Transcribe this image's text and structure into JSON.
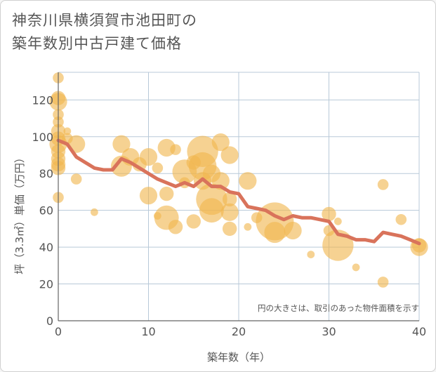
{
  "title_lines": [
    "神奈川県横須賀市池田町の",
    "築年数別中古戸建て価格"
  ],
  "chart_data": {
    "type": "scatter",
    "title": "神奈川県横須賀市池田町の築年数別中古戸建て価格",
    "xlabel": "築年数（年）",
    "ylabel": "坪（3.3㎡）単価（万円）",
    "xlim": [
      0,
      40
    ],
    "ylim": [
      0,
      135
    ],
    "xticks": [
      0,
      10,
      20,
      30,
      40
    ],
    "yticks": [
      0,
      20,
      40,
      60,
      80,
      100,
      120
    ],
    "grid": true,
    "annotation": "円の大きさは、取引のあった物件面積を示す",
    "colors": {
      "bubble": "#f0b64f",
      "line": "#d9735b",
      "grid": "#b8c9d8",
      "axis": "#666666"
    },
    "bubbles": [
      {
        "x": 0,
        "y": 132,
        "size": 2
      },
      {
        "x": 0,
        "y": 121,
        "size": 3
      },
      {
        "x": 0,
        "y": 119,
        "size": 4
      },
      {
        "x": 0,
        "y": 112,
        "size": 2
      },
      {
        "x": 0,
        "y": 108,
        "size": 2
      },
      {
        "x": 0,
        "y": 103,
        "size": 3
      },
      {
        "x": 0,
        "y": 99,
        "size": 3
      },
      {
        "x": 0,
        "y": 96,
        "size": 4
      },
      {
        "x": 0,
        "y": 92,
        "size": 3
      },
      {
        "x": 0,
        "y": 88,
        "size": 3
      },
      {
        "x": 0,
        "y": 85,
        "size": 3
      },
      {
        "x": 0,
        "y": 83,
        "size": 3
      },
      {
        "x": 0,
        "y": 67,
        "size": 2
      },
      {
        "x": 1,
        "y": 103,
        "size": 1
      },
      {
        "x": 1,
        "y": 99,
        "size": 2
      },
      {
        "x": 2,
        "y": 96,
        "size": 4
      },
      {
        "x": 2,
        "y": 77,
        "size": 2
      },
      {
        "x": 4,
        "y": 59,
        "size": 1
      },
      {
        "x": 7,
        "y": 96,
        "size": 4
      },
      {
        "x": 7,
        "y": 84,
        "size": 5
      },
      {
        "x": 8,
        "y": 89,
        "size": 4
      },
      {
        "x": 9,
        "y": 85,
        "size": 3
      },
      {
        "x": 10,
        "y": 89,
        "size": 4
      },
      {
        "x": 10,
        "y": 68,
        "size": 4
      },
      {
        "x": 11,
        "y": 83,
        "size": 2
      },
      {
        "x": 11,
        "y": 57,
        "size": 1
      },
      {
        "x": 12,
        "y": 94,
        "size": 4
      },
      {
        "x": 12,
        "y": 69,
        "size": 3
      },
      {
        "x": 12,
        "y": 56,
        "size": 6
      },
      {
        "x": 13,
        "y": 93,
        "size": 2
      },
      {
        "x": 13,
        "y": 51,
        "size": 3
      },
      {
        "x": 14,
        "y": 81,
        "size": 6
      },
      {
        "x": 14,
        "y": 75,
        "size": 2
      },
      {
        "x": 15,
        "y": 86,
        "size": 3
      },
      {
        "x": 15,
        "y": 54,
        "size": 3
      },
      {
        "x": 16,
        "y": 92,
        "size": 8
      },
      {
        "x": 16,
        "y": 84,
        "size": 7
      },
      {
        "x": 16,
        "y": 76,
        "size": 4
      },
      {
        "x": 17,
        "y": 80,
        "size": 4
      },
      {
        "x": 17,
        "y": 66,
        "size": 8
      },
      {
        "x": 17,
        "y": 60,
        "size": 6
      },
      {
        "x": 18,
        "y": 97,
        "size": 4
      },
      {
        "x": 18,
        "y": 76,
        "size": 4
      },
      {
        "x": 19,
        "y": 90,
        "size": 4
      },
      {
        "x": 19,
        "y": 66,
        "size": 3
      },
      {
        "x": 19,
        "y": 59,
        "size": 4
      },
      {
        "x": 19,
        "y": 50,
        "size": 3
      },
      {
        "x": 21,
        "y": 76,
        "size": 4
      },
      {
        "x": 21,
        "y": 51,
        "size": 1
      },
      {
        "x": 22,
        "y": 56,
        "size": 2
      },
      {
        "x": 24,
        "y": 54,
        "size": 10
      },
      {
        "x": 24,
        "y": 48,
        "size": 5
      },
      {
        "x": 26,
        "y": 49,
        "size": 4
      },
      {
        "x": 28,
        "y": 36,
        "size": 1
      },
      {
        "x": 30,
        "y": 58,
        "size": 3
      },
      {
        "x": 30,
        "y": 49,
        "size": 2
      },
      {
        "x": 31,
        "y": 41,
        "size": 8
      },
      {
        "x": 31,
        "y": 54,
        "size": 1
      },
      {
        "x": 33,
        "y": 29,
        "size": 1
      },
      {
        "x": 36,
        "y": 74,
        "size": 2
      },
      {
        "x": 36,
        "y": 21,
        "size": 2
      },
      {
        "x": 38,
        "y": 55,
        "size": 2
      },
      {
        "x": 40,
        "y": 41,
        "size": 3
      },
      {
        "x": 40,
        "y": 40,
        "size": 4
      }
    ],
    "trend_line": {
      "x": [
        0,
        1,
        2,
        3,
        4,
        5,
        6,
        7,
        8,
        9,
        10,
        11,
        12,
        13,
        14,
        15,
        16,
        17,
        18,
        19,
        20,
        21,
        22,
        23,
        24,
        25,
        26,
        27,
        28,
        29,
        30,
        31,
        32,
        33,
        34,
        35,
        36,
        37,
        38,
        39,
        40
      ],
      "y": [
        98,
        96,
        89,
        86,
        83,
        82,
        82,
        88,
        86,
        83,
        80,
        77,
        75,
        73,
        75,
        73,
        77,
        73,
        73,
        70,
        69,
        62,
        61,
        60,
        57,
        55,
        57,
        56,
        56,
        55,
        54,
        47,
        46,
        44,
        44,
        43,
        48,
        47,
        46,
        44,
        42
      ]
    }
  }
}
